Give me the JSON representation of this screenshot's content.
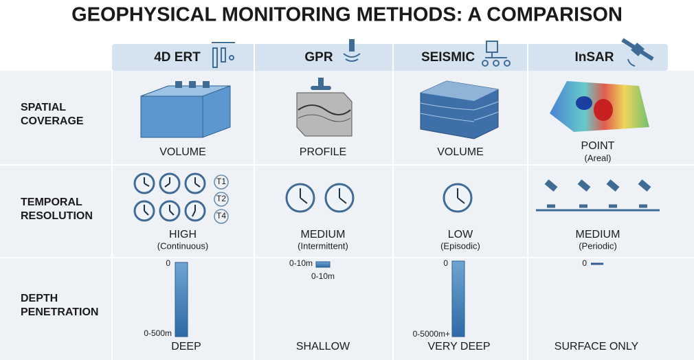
{
  "title": "GEOPHYSICAL MONITORING METHODS: A COMPARISON",
  "columns": [
    "4D ERT",
    "GPR",
    "SEISMIC",
    "InSAR"
  ],
  "rows": [
    {
      "label_lines": [
        "SPATIAL",
        "COVERAGE"
      ],
      "cells": [
        {
          "value": "VOLUME"
        },
        {
          "value": "PROFILE"
        },
        {
          "value": "VOLUME"
        },
        {
          "value": "POINT",
          "note": "(Areal)"
        }
      ]
    },
    {
      "label_lines": [
        "TEMPORAL",
        "RESOLUTION"
      ],
      "time_markers": [
        "T1",
        "T2",
        "T4"
      ],
      "cells": [
        {
          "value": "HIGH",
          "note": "(Continuous)"
        },
        {
          "value": "MEDIUM",
          "note": "(Intermittent)"
        },
        {
          "value": "LOW",
          "note": "(Episodic)"
        },
        {
          "value": "MEDIUM",
          "note": "(Periodic)"
        }
      ]
    },
    {
      "label_lines": [
        "DEPTH",
        "PENETRATION"
      ],
      "cells": [
        {
          "value": "DEEP",
          "top": "0",
          "bottom": "0-500m"
        },
        {
          "value": "SHALLOW",
          "top": "0-10m",
          "bottom": "0-10m"
        },
        {
          "value": "VERY DEEP",
          "top": "0",
          "bottom": "0-5000m+"
        },
        {
          "value": "SURFACE ONLY",
          "top": "0"
        }
      ]
    }
  ]
}
